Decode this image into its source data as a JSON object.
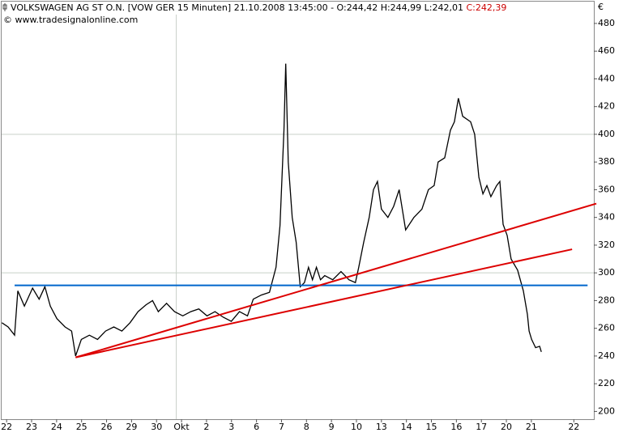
{
  "chart_data": {
    "type": "line",
    "title": "VOLKSWAGEN AG ST O.N. [VOW GER  15 Minuten] 21.10.2008 13:45:00 - O:244,42 H:244,99 L:242,01",
    "close_label": "C:242,39",
    "subtitle": "© www.tradesignalonline.com",
    "y_unit": "€",
    "color": "#000000",
    "x": [
      -0.19,
      0.06,
      0.32,
      0.45,
      0.71,
      1.04,
      1.3,
      1.53,
      1.75,
      2.01,
      2.34,
      2.6,
      2.76,
      2.99,
      3.31,
      3.64,
      3.96,
      4.29,
      4.61,
      4.94,
      5.26,
      5.58,
      5.84,
      6.07,
      6.4,
      6.72,
      7.05,
      7.37,
      7.69,
      8.02,
      8.34,
      8.67,
      8.99,
      9.32,
      9.64,
      9.87,
      10.19,
      10.52,
      10.78,
      10.94,
      11.1,
      11.17,
      11.27,
      11.43,
      11.59,
      11.75,
      11.92,
      12.08,
      12.24,
      12.4,
      12.56,
      12.73,
      13.05,
      13.38,
      13.7,
      13.96,
      14.09,
      14.29,
      14.51,
      14.68,
      14.84,
      15.0,
      15.26,
      15.49,
      15.71,
      15.97,
      16.3,
      16.62,
      16.88,
      17.11,
      17.27,
      17.53,
      17.76,
      17.92,
      18.08,
      18.25,
      18.57,
      18.73,
      18.9,
      19.06,
      19.22,
      19.38,
      19.61,
      19.74,
      19.87,
      20.03,
      20.19,
      20.45,
      20.68,
      20.84,
      20.91,
      21.01,
      21.17,
      21.33,
      21.4
    ],
    "values": [
      264,
      261,
      255,
      287,
      276,
      289,
      281,
      290,
      276,
      267,
      261,
      258,
      240,
      252,
      255,
      252,
      258,
      261,
      258,
      264,
      272,
      277,
      280,
      272,
      278,
      272,
      269,
      272,
      274,
      269,
      272,
      268,
      265,
      272,
      269,
      281,
      284,
      286,
      304,
      334,
      403,
      451,
      380,
      340,
      322,
      290,
      293,
      304,
      295,
      304,
      295,
      298,
      295,
      301,
      295,
      293,
      304,
      322,
      340,
      360,
      366,
      346,
      340,
      348,
      360,
      331,
      340,
      346,
      360,
      363,
      380,
      383,
      403,
      409,
      426,
      413,
      409,
      400,
      369,
      357,
      363,
      355,
      363,
      366,
      335,
      327,
      310,
      302,
      287,
      270,
      258,
      252,
      246,
      247,
      243
    ],
    "lines": [
      {
        "color": "#0066cc",
        "x": [
          0.32,
          23.25
        ],
        "y": [
          291,
          291
        ]
      },
      {
        "color": "#dd0000",
        "x": [
          2.76,
          23.6
        ],
        "y": [
          239,
          350
        ]
      },
      {
        "color": "#dd0000",
        "x": [
          2.76,
          22.63
        ],
        "y": [
          239,
          317
        ]
      }
    ],
    "xlim": [
      -0.2,
      23.5
    ],
    "xticks": [
      {
        "value": 0,
        "label": "22"
      },
      {
        "value": 1,
        "label": "23"
      },
      {
        "value": 2,
        "label": "24"
      },
      {
        "value": 3,
        "label": "25"
      },
      {
        "value": 4,
        "label": "26"
      },
      {
        "value": 5,
        "label": "29"
      },
      {
        "value": 6,
        "label": "30"
      },
      {
        "value": 7,
        "label": "Okt"
      },
      {
        "value": 8,
        "label": "2"
      },
      {
        "value": 9,
        "label": "3"
      },
      {
        "value": 10,
        "label": "6"
      },
      {
        "value": 11,
        "label": "7"
      },
      {
        "value": 12,
        "label": "8"
      },
      {
        "value": 13,
        "label": "9"
      },
      {
        "value": 14,
        "label": "10"
      },
      {
        "value": 15,
        "label": "13"
      },
      {
        "value": 16,
        "label": "14"
      },
      {
        "value": 17,
        "label": "15"
      },
      {
        "value": 18,
        "label": "16"
      },
      {
        "value": 19,
        "label": "17"
      },
      {
        "value": 20,
        "label": "20"
      },
      {
        "value": 21,
        "label": "21"
      },
      {
        "value": 22.7,
        "label": "22"
      }
    ],
    "ylim": [
      194.4,
      486.4
    ],
    "yticks": [
      200,
      220,
      240,
      260,
      280,
      300,
      320,
      340,
      360,
      380,
      400,
      420,
      440,
      460,
      480
    ],
    "ygrid": [
      300,
      400
    ],
    "xgrid": [
      6.79
    ]
  }
}
